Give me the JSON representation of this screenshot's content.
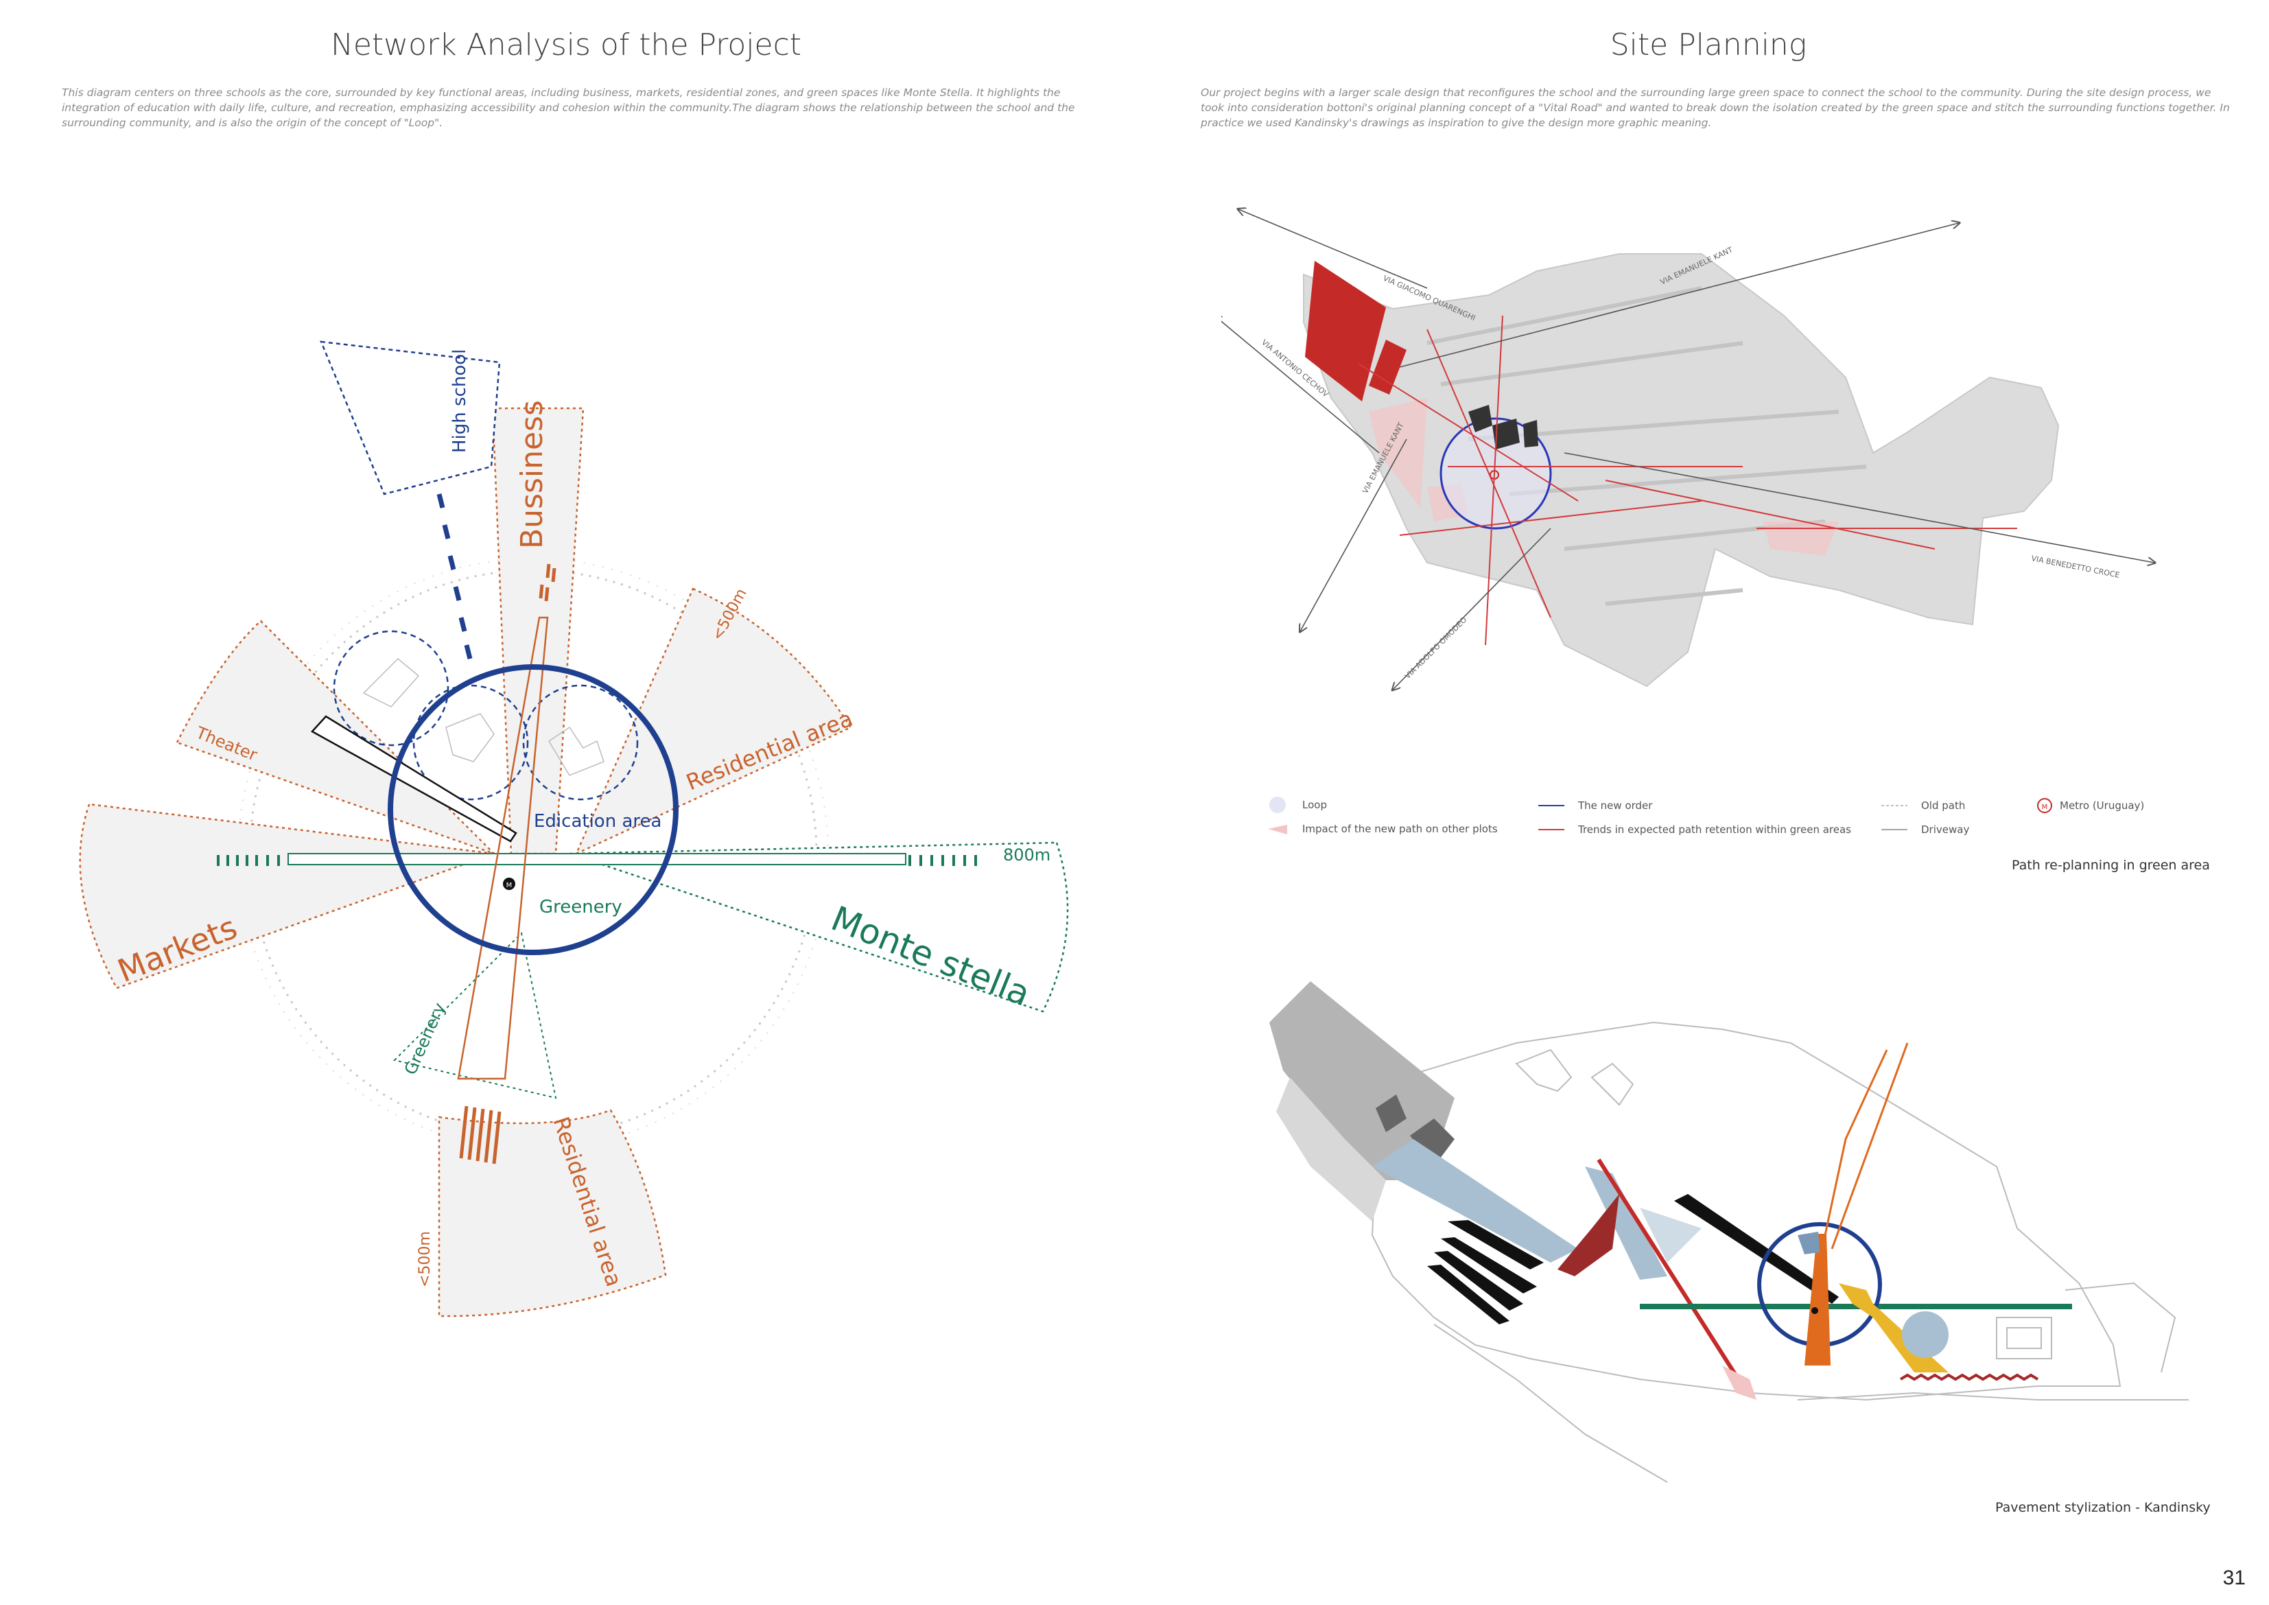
{
  "left": {
    "title": "Network Analysis of the Project",
    "description": "This diagram centers on three schools as the core, surrounded by key functional areas, including business, markets, residential zones, and green spaces like Monte Stella. It highlights the integration of education with daily life, culture, and recreation, emphasizing accessibility and cohesion within the community.The diagram shows the relationship between the school and the surrounding community, and is also the origin of the concept of \"Loop\".",
    "labels": {
      "high_school": "High school",
      "business": "Bussiness",
      "residential_top": "Residential area",
      "distance_500_top": "<500m",
      "theater": "Theater",
      "markets": "Markets",
      "education": "Edication area",
      "greenery_center": "Greenery",
      "distance_800": "800m",
      "monte_stella": "Monte stella",
      "greenery_bottom": "Greenery",
      "residential_bottom": "Residential area",
      "distance_500_bottom": "<500m"
    },
    "colors": {
      "blue": "#1f3f8f",
      "orange": "#c8632e",
      "green": "#1a7a58",
      "sector_fill": "#f2f2f2"
    }
  },
  "right": {
    "title": "Site Planning",
    "description": "Our project begins with a larger scale design that reconfigures the school and the surrounding large green space to connect the school to the community. During the site design process, we took into consideration bottoni's original planning concept of a \"Vital Road\" and wanted to break down the isolation created by the green space and stitch the surrounding functions together. In practice we used Kandinsky's drawings as inspiration to give the design more graphic meaning.",
    "streets": {
      "quarenghi": "VIA GIACOMO QUARENGHI",
      "kant_top": "VIA EMANUELE KANT",
      "cechov": "VIA ANTONIO CECHOV",
      "kant_bottom": "VIA EMANUELE KANT",
      "omodeo": "VIA ADOLFO OMODEO",
      "croce": "VIA BENEDETTO CROCE"
    },
    "legend": {
      "loop": "Loop",
      "impact": "Impact of the new path on other plots",
      "new_order": "The new order",
      "trends": "Trends in expected path retention within green areas",
      "old_path": "Old path",
      "driveway": "Driveway",
      "metro": "Metro (Uruguay)"
    },
    "caption_top": "Path re-planning in green area",
    "caption_bottom": "Pavement stylization - Kandinsky"
  },
  "page_number": "31"
}
